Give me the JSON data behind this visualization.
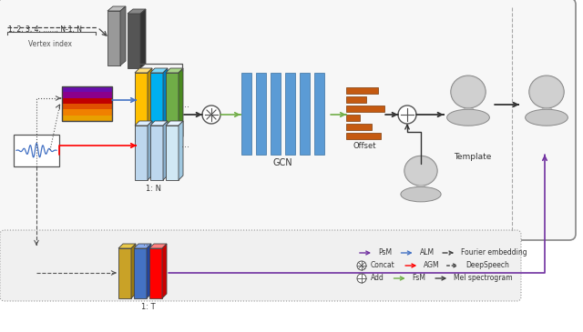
{
  "fig_width": 6.4,
  "fig_height": 3.65,
  "dpi": 100,
  "bg_color": "#ffffff",
  "gcn_bar_color": "#5b9bd5",
  "offset_bar_color": "#c55a11",
  "gray_slab_front": "#999999",
  "gray_slab_top": "#c0c0c0",
  "gray_slab_side": "#707070",
  "gray_slab2_front": "#555555",
  "gray_slab2_top": "#888888",
  "gray_slab2_side": "#333333",
  "yellow_slab_front": "#ffc000",
  "yellow_slab_top": "#ffe080",
  "yellow_slab_side": "#c09000",
  "blue_slab_front": "#00b0f0",
  "blue_slab_top": "#80d8f8",
  "blue_slab_side": "#0080c0",
  "green_slab_front": "#70ad47",
  "green_slab_top": "#a8d488",
  "green_slab_side": "#4a8a20",
  "lightblue_slab_front": "#bdd7ee",
  "lightblue_slab_top": "#ddeeff",
  "lightblue_slab_side": "#8ab0cc",
  "gold_slab_front": "#c9a227",
  "gold_slab_top": "#e8c84a",
  "gold_slab_side": "#9a7a10",
  "blue2_slab_front": "#4472c4",
  "blue2_slab_top": "#88aaee",
  "blue2_slab_side": "#2244a0",
  "red_slab_front": "#ff0000",
  "red_slab_top": "#ff8080",
  "red_slab_side": "#cc0000",
  "labels": {
    "vertex_index": "1, 2, 3, 4, ......, N-1, N",
    "vertex_index_sub": "Vertex index",
    "colon_n": "1: N",
    "colon_t": "1: T",
    "gcn": "GCN",
    "offset": "Offset",
    "template": "Template"
  },
  "legend_rows": [
    [
      {
        "type": "arrow",
        "color": "#7030a0",
        "style": "solid",
        "label": "PsM"
      },
      {
        "type": "arrow",
        "color": "#4472c4",
        "style": "solid",
        "label": "ALM"
      },
      {
        "type": "arrow",
        "color": "#404040",
        "style": "dashed",
        "label": "Fourier embedding"
      }
    ],
    [
      {
        "type": "circle_x",
        "color": "#404040",
        "label": "Concat"
      },
      {
        "type": "arrow",
        "color": "#ff0000",
        "style": "solid",
        "label": "AGM"
      },
      {
        "type": "arrow",
        "color": "#404040",
        "style": "dotted",
        "label": "DeepSpeech"
      }
    ],
    [
      {
        "type": "circle_plus",
        "color": "#404040",
        "label": "Add"
      },
      {
        "type": "arrow",
        "color": "#70ad47",
        "style": "solid",
        "label": "FsM"
      },
      {
        "type": "arrow",
        "color": "#404040",
        "style": "solid",
        "label": "Mel spectrogram"
      }
    ]
  ]
}
